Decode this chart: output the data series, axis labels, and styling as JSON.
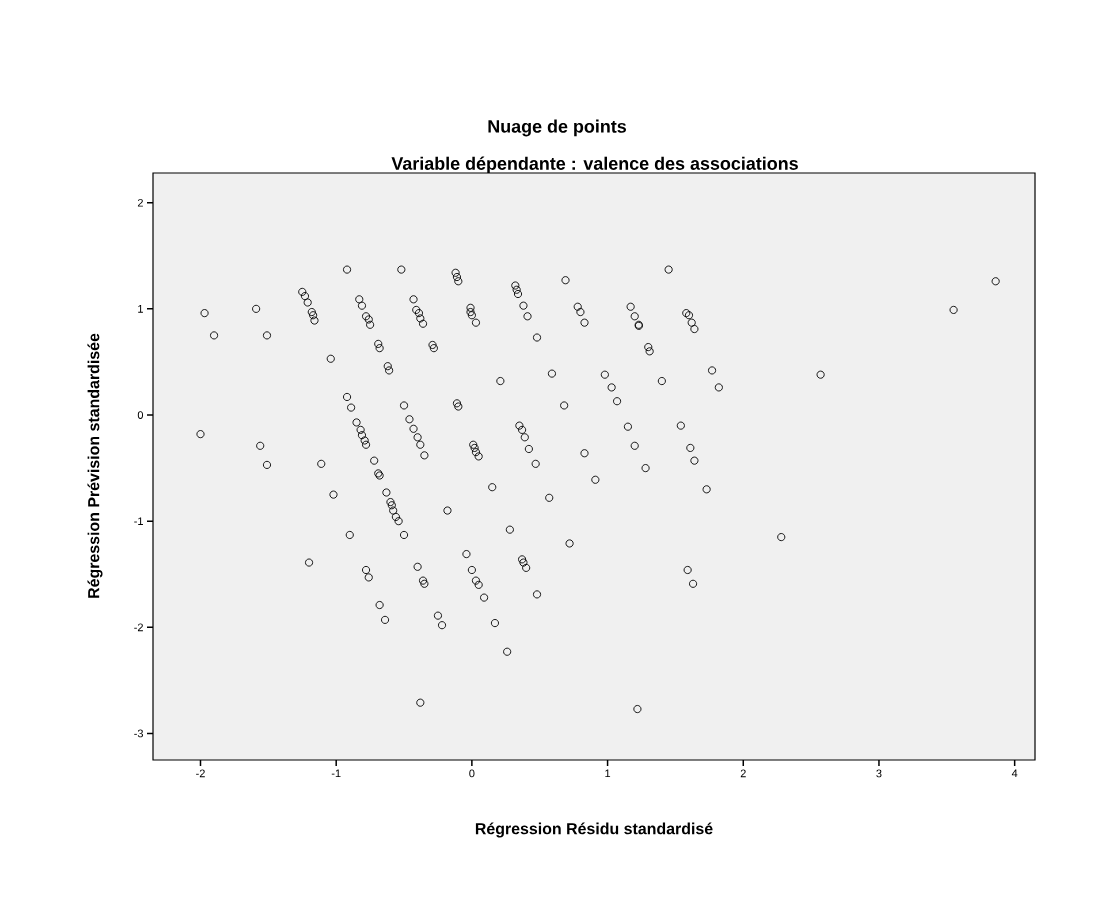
{
  "chart_data": {
    "type": "scatter",
    "title": "Nuage de points",
    "subtitle": "Variable dépendante : valence des associations",
    "xlabel": "Régression Résidu standardisé",
    "ylabel": "Régression Prévision standardisée",
    "xlim": [
      -2.35,
      4.15
    ],
    "ylim": [
      -3.25,
      2.28
    ],
    "xticks": [
      -2,
      -1,
      0,
      1,
      2,
      3,
      4
    ],
    "yticks": [
      -3,
      -2,
      -1,
      0,
      1,
      2
    ],
    "marker": "circle",
    "series": [
      {
        "color": "#000000",
        "x": [
          -1.97,
          -1.9,
          -1.59,
          -1.51,
          -1.04,
          -0.92,
          -0.52,
          -1.25,
          -1.23,
          -1.21,
          -1.18,
          -1.17,
          -1.16,
          -0.83,
          -0.81,
          -0.78,
          -0.76,
          -0.75,
          -0.43,
          -0.41,
          -0.39,
          -0.38,
          -0.36,
          -0.69,
          -0.68,
          -0.62,
          -0.61,
          -0.29,
          -0.28,
          -0.12,
          -0.11,
          -0.1,
          -0.01,
          -0.01,
          0.0,
          0.03,
          -0.11,
          -0.1,
          -0.92,
          -0.89,
          -0.85,
          -0.82,
          -0.81,
          -0.79,
          -0.78,
          -0.5,
          -0.46,
          -0.43,
          -0.4,
          -0.38,
          -0.35,
          0.01,
          0.02,
          0.03,
          0.05,
          -2.0,
          -1.56,
          -1.51,
          -1.11,
          -0.72,
          0.32,
          0.33,
          0.34,
          0.38,
          0.41,
          0.69,
          0.48,
          0.78,
          0.8,
          0.83,
          1.17,
          1.2,
          1.23,
          1.23,
          1.45,
          1.58,
          1.6,
          1.62,
          1.64,
          1.3,
          1.31,
          0.21,
          0.59,
          0.98,
          1.03,
          1.07,
          1.4,
          1.77,
          1.82,
          0.68,
          0.35,
          0.37,
          0.39,
          0.42,
          0.47,
          0.83,
          1.15,
          1.2,
          1.28,
          1.54,
          1.61,
          1.64,
          -0.69,
          -0.68,
          -1.02,
          -0.63,
          -0.6,
          -0.59,
          -0.58,
          -0.56,
          -0.54,
          -0.18,
          -0.9,
          -0.5,
          -1.2,
          -0.78,
          -0.76,
          -0.4,
          -0.36,
          -0.35,
          -0.04,
          0.0,
          0.03,
          0.05,
          0.09,
          -0.68,
          -0.64,
          -0.25,
          -0.22,
          -0.38,
          0.15,
          0.57,
          0.91,
          1.73,
          0.28,
          0.72,
          0.37,
          0.38,
          0.4,
          0.48,
          0.17,
          0.26,
          1.59,
          1.63,
          2.28,
          1.22,
          3.86,
          3.55,
          2.57
        ],
        "values": [
          0.96,
          0.75,
          1.0,
          0.75,
          0.53,
          1.37,
          1.37,
          1.16,
          1.12,
          1.06,
          0.97,
          0.94,
          0.89,
          1.09,
          1.03,
          0.93,
          0.9,
          0.85,
          1.09,
          0.99,
          0.96,
          0.91,
          0.86,
          0.67,
          0.63,
          0.46,
          0.42,
          0.66,
          0.63,
          1.34,
          1.3,
          1.26,
          1.01,
          0.97,
          0.94,
          0.87,
          0.11,
          0.08,
          0.17,
          0.07,
          -0.07,
          -0.14,
          -0.19,
          -0.24,
          -0.28,
          0.09,
          -0.04,
          -0.13,
          -0.21,
          -0.28,
          -0.38,
          -0.28,
          -0.31,
          -0.35,
          -0.39,
          -0.18,
          -0.29,
          -0.47,
          -0.46,
          -0.43,
          1.22,
          1.18,
          1.14,
          1.03,
          0.93,
          1.27,
          0.73,
          1.02,
          0.97,
          0.87,
          1.02,
          0.93,
          0.85,
          0.84,
          1.37,
          0.96,
          0.94,
          0.87,
          0.81,
          0.64,
          0.6,
          0.32,
          0.39,
          0.38,
          0.26,
          0.13,
          0.32,
          0.42,
          0.26,
          0.09,
          -0.1,
          -0.14,
          -0.21,
          -0.32,
          -0.46,
          -0.36,
          -0.11,
          -0.29,
          -0.5,
          -0.1,
          -0.31,
          -0.43,
          -0.55,
          -0.57,
          -0.75,
          -0.73,
          -0.82,
          -0.85,
          -0.9,
          -0.96,
          -1.0,
          -0.9,
          -1.13,
          -1.13,
          -1.39,
          -1.46,
          -1.53,
          -1.43,
          -1.56,
          -1.59,
          -1.31,
          -1.46,
          -1.56,
          -1.6,
          -1.72,
          -1.79,
          -1.93,
          -1.89,
          -1.98,
          -2.71,
          -0.68,
          -0.78,
          -0.61,
          -0.7,
          -1.08,
          -1.21,
          -1.36,
          -1.39,
          -1.44,
          -1.69,
          -1.96,
          -2.23,
          -1.46,
          -1.59,
          -1.15,
          -2.77,
          1.26,
          0.99,
          0.38
        ]
      }
    ]
  }
}
